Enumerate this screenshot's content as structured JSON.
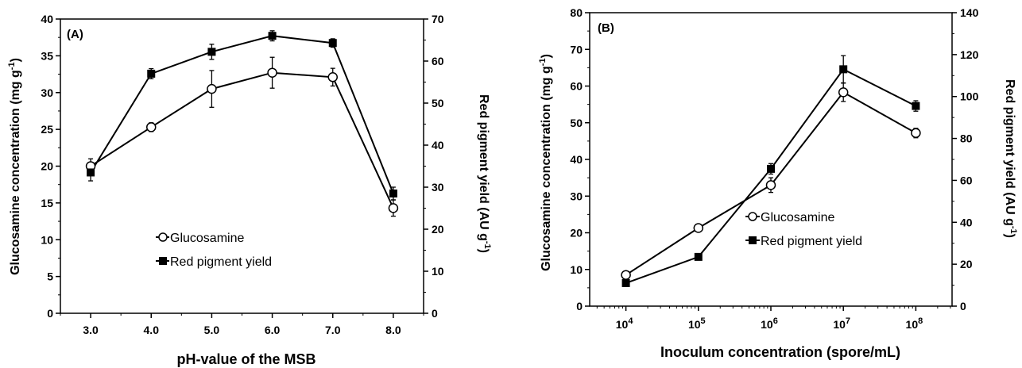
{
  "chart_data": [
    {
      "type": "line",
      "panel_label": "(A)",
      "xlabel": "pH-value of the MSB",
      "ylabel": "Glucosamine concentration (mg g-1)",
      "y2label": "Red pigment yield (AU g-1)",
      "categories": [
        "3.0",
        "4.0",
        "5.0",
        "6.0",
        "7.0",
        "8.0"
      ],
      "x": [
        3,
        4,
        5,
        6,
        7,
        8
      ],
      "xlim": [
        2.5,
        8.5
      ],
      "ylim": [
        0,
        40
      ],
      "y2lim": [
        0,
        70
      ],
      "yticks": [
        "0",
        "5",
        "10",
        "15",
        "20",
        "25",
        "30",
        "35",
        "40"
      ],
      "y2ticks": [
        "0",
        "10",
        "20",
        "30",
        "40",
        "50",
        "60",
        "70"
      ],
      "series": [
        {
          "name": "Glucosamine",
          "axis": "left",
          "marker": "open-circle",
          "values": [
            20.0,
            25.3,
            30.5,
            32.7,
            32.1,
            14.3
          ],
          "errors": [
            1.0,
            0.6,
            2.5,
            2.1,
            1.2,
            1.1
          ]
        },
        {
          "name": "Red pigment yield",
          "axis": "right",
          "marker": "filled-square",
          "values": [
            33.5,
            57.0,
            62.2,
            66.0,
            64.3,
            28.5
          ],
          "errors": [
            2.0,
            1.2,
            1.8,
            1.2,
            1.0,
            1.5
          ]
        }
      ],
      "legend": "center"
    },
    {
      "type": "line",
      "panel_label": "(B)",
      "xlabel": "Inoculum concentration (spore/mL)",
      "ylabel": "Glucosamine concentration (mg g-1)",
      "y2label": "Red pigment yield (AU g-1)",
      "x": [
        4,
        5,
        6,
        7,
        8
      ],
      "x_tick_base": "10",
      "x_tick_exponents": [
        "4",
        "5",
        "6",
        "7",
        "8"
      ],
      "xscale": "log",
      "xlim": [
        3.5,
        8.5
      ],
      "ylim": [
        0,
        80
      ],
      "y2lim": [
        0,
        140
      ],
      "yticks": [
        "0",
        "10",
        "20",
        "30",
        "40",
        "50",
        "60",
        "70",
        "80"
      ],
      "y2ticks": [
        "0",
        "20",
        "40",
        "60",
        "80",
        "100",
        "120",
        "140"
      ],
      "series": [
        {
          "name": "Glucosamine",
          "axis": "left",
          "marker": "open-circle",
          "values": [
            8.5,
            21.3,
            33.0,
            58.3,
            47.2
          ],
          "errors": [
            0.8,
            1.0,
            2.0,
            2.5,
            1.3
          ]
        },
        {
          "name": "Red pigment yield",
          "axis": "right",
          "marker": "filled-square",
          "values": [
            11.0,
            23.5,
            65.5,
            113.0,
            95.5
          ],
          "errors": [
            0.6,
            0.6,
            2.5,
            6.5,
            2.5
          ]
        }
      ],
      "legend": "center-right"
    }
  ]
}
